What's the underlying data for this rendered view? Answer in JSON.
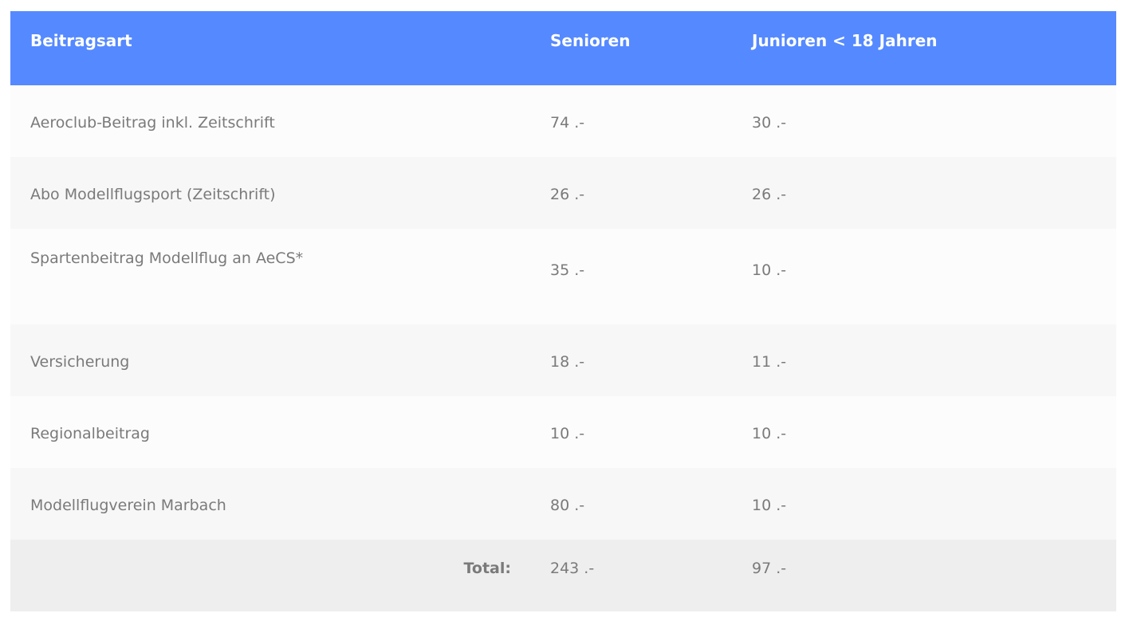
{
  "table": {
    "headers": [
      "Beitragsart",
      "Senioren",
      "Junioren < 18 Jahren"
    ],
    "rows": [
      {
        "label": "Aeroclub-Beitrag inkl. Zeitschrift",
        "senioren": "74 .-",
        "junioren": "30 .-"
      },
      {
        "label": "Abo Modellflugsport (Zeitschrift)",
        "senioren": "26 .-",
        "junioren": "26 .-"
      },
      {
        "label": "Spartenbeitrag Modellflug an AeCS*",
        "senioren": "35 .-",
        "junioren": "10 .-"
      },
      {
        "label": "Versicherung",
        "senioren": "18 .-",
        "junioren": "11 .-"
      },
      {
        "label": "Regionalbeitrag",
        "senioren": "10 .-",
        "junioren": "10 .-"
      },
      {
        "label": "Modellflugverein Marbach",
        "senioren": "80 .-",
        "junioren": "10 .-"
      }
    ],
    "total": {
      "label": "Total:",
      "senioren": "243 .-",
      "junioren": "97 .-"
    }
  },
  "colors": {
    "header_background": "#5589ff",
    "header_text": "#ffffff",
    "body_text": "#7a7a7a",
    "row_odd": "#fcfcfc",
    "row_even": "#f7f7f7",
    "total_background": "#eeeeee"
  }
}
